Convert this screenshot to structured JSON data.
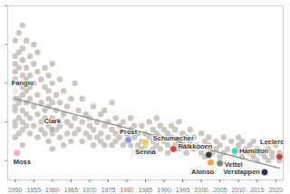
{
  "chart_data": {
    "type": "scatter",
    "xlim": [
      1948,
      2022
    ],
    "xticks": [
      1950,
      1955,
      1960,
      1965,
      1970,
      1975,
      1980,
      1985,
      1990,
      1995,
      2000,
      2005,
      2010,
      2015,
      2020
    ],
    "ylim": [
      15,
      60
    ],
    "yticks": [
      20,
      30,
      40,
      50,
      60
    ],
    "tick_labels": "x",
    "series": [
      {
        "type": "scatter",
        "color": "#cdc7c2",
        "x": [
          1950,
          1950,
          1950,
          1950,
          1950,
          1950,
          1950,
          1950,
          1950,
          1950,
          1950,
          1950,
          1951,
          1951,
          1951,
          1951,
          1951,
          1951,
          1951,
          1951,
          1952,
          1952,
          1952,
          1952,
          1952,
          1952,
          1952,
          1952,
          1952,
          1952,
          1953,
          1953,
          1953,
          1953,
          1953,
          1953,
          1953,
          1954,
          1954,
          1954,
          1954,
          1954,
          1954,
          1955,
          1955,
          1955,
          1955,
          1955,
          1956,
          1956,
          1956,
          1956,
          1956,
          1957,
          1957,
          1957,
          1957,
          1958,
          1958,
          1958,
          1958,
          1958,
          1959,
          1959,
          1959,
          1959,
          1959,
          1959,
          1960,
          1960,
          1960,
          1960,
          1960,
          1960,
          1961,
          1961,
          1961,
          1961,
          1962,
          1962,
          1962,
          1962,
          1963,
          1963,
          1963,
          1964,
          1964,
          1964,
          1965,
          1965,
          1965,
          1966,
          1966,
          1966,
          1967,
          1967,
          1968,
          1968,
          1968,
          1969,
          1969,
          1970,
          1970,
          1970,
          1971,
          1971,
          1971,
          1972,
          1972,
          1973,
          1973,
          1973,
          1974,
          1974,
          1974,
          1975,
          1975,
          1976,
          1976,
          1976,
          1977,
          1977,
          1977,
          1978,
          1978,
          1979,
          1979,
          1980,
          1980,
          1981,
          1981,
          1981,
          1982,
          1982,
          1983,
          1983,
          1984,
          1984,
          1984,
          1985,
          1985,
          1986,
          1986,
          1987,
          1987,
          1987,
          1988,
          1988,
          1988,
          1989,
          1989,
          1989,
          1990,
          1990,
          1991,
          1991,
          1991,
          1992,
          1992,
          1993,
          1993,
          1994,
          1994,
          1994,
          1995,
          1995,
          1996,
          1996,
          1997,
          1997,
          1998,
          1998,
          1999,
          2000,
          2000,
          2001,
          2001,
          2002,
          2002,
          2003,
          2004,
          2004,
          2005,
          2005,
          2006,
          2006,
          2007,
          2008,
          2009,
          2010,
          2010,
          2010,
          2011,
          2011,
          2012,
          2013,
          2013,
          2014,
          2014,
          2015,
          2015,
          2016,
          2017,
          2018,
          2018,
          2019,
          2019,
          2020,
          2021,
          2021
        ],
        "values": [
          38,
          45,
          33,
          29,
          41,
          51,
          36,
          47,
          30,
          43,
          26,
          34,
          40,
          48,
          31,
          36,
          53,
          27,
          44,
          35,
          30,
          42,
          55,
          37,
          28,
          46,
          33,
          49,
          39,
          24,
          35,
          44,
          29,
          51,
          38,
          32,
          41,
          31,
          47,
          36,
          27,
          42,
          39,
          34,
          45,
          29,
          40,
          50,
          26,
          37,
          43,
          32,
          48,
          30,
          41,
          35,
          28,
          27,
          39,
          33,
          44,
          31,
          29,
          36,
          25,
          42,
          34,
          38,
          31,
          27,
          40,
          35,
          23,
          45,
          33,
          28,
          37,
          30,
          26,
          35,
          41,
          29,
          32,
          24,
          38,
          27,
          34,
          30,
          29,
          36,
          25,
          31,
          27,
          40,
          28,
          33,
          30,
          25,
          36,
          27,
          32,
          26,
          31,
          29,
          28,
          34,
          24,
          30,
          26,
          27,
          32,
          25,
          29,
          24,
          33,
          26,
          30,
          28,
          24,
          35,
          27,
          31,
          25,
          26,
          29,
          24,
          30,
          27,
          25,
          28,
          24,
          31,
          26,
          29,
          24,
          27,
          25,
          29,
          23,
          27,
          24,
          26,
          30,
          25,
          28,
          23,
          27,
          24,
          31,
          26,
          23,
          29,
          25,
          28,
          24,
          27,
          22,
          26,
          29,
          24,
          28,
          25,
          23,
          30,
          27,
          24,
          22,
          26,
          25,
          28,
          23,
          26,
          24,
          22,
          27,
          21,
          25,
          24,
          26,
          22,
          25,
          23,
          24,
          21,
          26,
          22,
          23,
          25,
          22,
          24,
          26,
          23,
          21,
          25,
          23,
          22,
          24,
          21,
          25,
          20,
          23,
          22,
          21,
          23,
          20,
          22,
          21,
          24,
          22,
          20
        ]
      },
      {
        "type": "line",
        "color": "#8c8c8c",
        "x": [
          1950,
          2021
        ],
        "values": [
          36,
          18
        ]
      }
    ],
    "annotations": [
      {
        "text": "Fangio",
        "x": 1950,
        "y": 38,
        "color": "#ebe7e3"
      },
      {
        "text": "Moss",
        "x": 1950.5,
        "y": 22,
        "color": "#f7a8cf"
      },
      {
        "text": "Clark",
        "x": 1960,
        "y": 28,
        "color": "#bdb6b0"
      },
      {
        "text": "Prost",
        "x": 1980.4,
        "y": 25.4,
        "color": "#7f9fd9"
      },
      {
        "text": "Senna",
        "x": 1985,
        "y": 24.7,
        "color": "#f2c84b"
      },
      {
        "text": "Schumacher",
        "x": 1992.5,
        "y": 23,
        "color": "#d2473b"
      },
      {
        "text": "Räikkönen",
        "x": 2002,
        "y": 21.5,
        "color": "#3c3c3c"
      },
      {
        "text": "Alonso",
        "x": 2002.5,
        "y": 19.5,
        "color": "#f0a23c"
      },
      {
        "text": "Vettel",
        "x": 2005,
        "y": 19.3,
        "color": "#6f8c72"
      },
      {
        "text": "Hamilton",
        "x": 2009,
        "y": 22.5,
        "color": "#45d1c6"
      },
      {
        "text": "Verstappen",
        "x": 2017,
        "y": 17,
        "color": "#2f2c6e"
      },
      {
        "text": "Leclerc",
        "x": 2021,
        "y": 21,
        "color": "#c9453b"
      }
    ]
  }
}
